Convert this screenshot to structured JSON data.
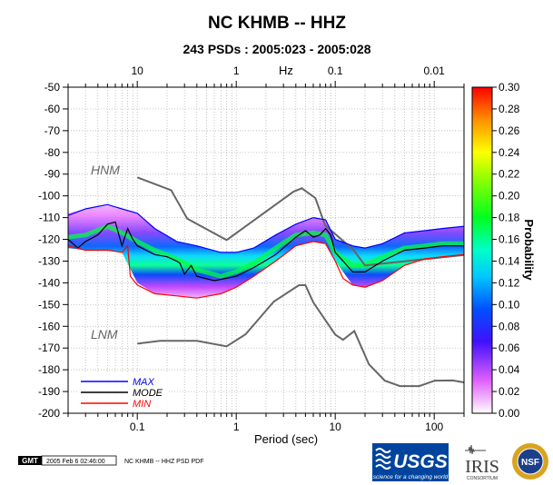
{
  "chart_data": {
    "type": "heatmap",
    "title": "NC KHMB -- HHZ",
    "subtitle": "243 PSDs : 2005:023 - 2005:028",
    "xlabel": "Period (sec)",
    "x2label": "Hz",
    "colorbar_label": "Probability",
    "x_scale": "log",
    "xlim": [
      0.02,
      200
    ],
    "ylim": [
      -200,
      -50
    ],
    "grid": true,
    "x_ticks": [
      {
        "value": 0.1,
        "label": "0.1"
      },
      {
        "value": 1,
        "label": "1"
      },
      {
        "value": 10,
        "label": "10"
      },
      {
        "value": 100,
        "label": "100"
      }
    ],
    "x2_ticks": [
      {
        "value": 10,
        "label": "10"
      },
      {
        "value": 1,
        "label": "1"
      },
      {
        "value": 0.1,
        "label": "0.1"
      },
      {
        "value": 0.01,
        "label": "0.01"
      }
    ],
    "y_ticks": [
      -50,
      -60,
      -70,
      -80,
      -90,
      -100,
      -110,
      -120,
      -130,
      -140,
      -150,
      -160,
      -170,
      -180,
      -190,
      -200
    ],
    "colorbar_ticks": [
      "0.00",
      "0.02",
      "0.04",
      "0.06",
      "0.08",
      "0.10",
      "0.12",
      "0.14",
      "0.16",
      "0.18",
      "0.20",
      "0.22",
      "0.24",
      "0.26",
      "0.28",
      "0.30"
    ],
    "colorbar_range": [
      0,
      0.3
    ],
    "noise_models": [
      {
        "name": "HNM",
        "color": "#666666",
        "points": [
          [
            0.1,
            -91.5
          ],
          [
            0.22,
            -97.4
          ],
          [
            0.32,
            -110.5
          ],
          [
            0.8,
            -120.3
          ],
          [
            3.8,
            -98.0
          ],
          [
            4.6,
            -96.5
          ],
          [
            6.3,
            -101.0
          ],
          [
            7.9,
            -113.5
          ],
          [
            15.4,
            -125.0
          ],
          [
            20.0,
            -132.0
          ],
          [
            354.8,
            -126.0
          ]
        ]
      },
      {
        "name": "LNM",
        "color": "#666666",
        "points": [
          [
            0.1,
            -168.0
          ],
          [
            0.17,
            -166.7
          ],
          [
            0.4,
            -166.7
          ],
          [
            0.8,
            -169.2
          ],
          [
            1.24,
            -163.7
          ],
          [
            2.4,
            -148.6
          ],
          [
            4.3,
            -141.1
          ],
          [
            5.0,
            -141.1
          ],
          [
            6.0,
            -149.0
          ],
          [
            10.0,
            -163.8
          ],
          [
            12.0,
            -166.2
          ],
          [
            15.6,
            -162.2
          ],
          [
            21.9,
            -177.5
          ],
          [
            31.6,
            -185.0
          ],
          [
            45.0,
            -187.5
          ],
          [
            70.8,
            -187.5
          ],
          [
            101.0,
            -185.0
          ],
          [
            154.0,
            -184.9
          ],
          [
            328.0,
            -187.5
          ]
        ]
      }
    ],
    "series": [
      {
        "name": "MAX",
        "color": "#0000ff",
        "points": [
          [
            0.02,
            -109
          ],
          [
            0.03,
            -106
          ],
          [
            0.05,
            -104
          ],
          [
            0.07,
            -106
          ],
          [
            0.1,
            -108
          ],
          [
            0.15,
            -115
          ],
          [
            0.25,
            -121
          ],
          [
            0.4,
            -123
          ],
          [
            0.7,
            -126
          ],
          [
            1.0,
            -126
          ],
          [
            1.5,
            -124
          ],
          [
            2.5,
            -118
          ],
          [
            4,
            -113
          ],
          [
            6,
            -110
          ],
          [
            8,
            -111
          ],
          [
            10,
            -120
          ],
          [
            15,
            -123
          ],
          [
            20,
            -124
          ],
          [
            30,
            -122
          ],
          [
            50,
            -117
          ],
          [
            80,
            -116
          ],
          [
            120,
            -115
          ],
          [
            200,
            -114
          ]
        ]
      },
      {
        "name": "MODE",
        "color": "#000000",
        "points": [
          [
            0.02,
            -120
          ],
          [
            0.025,
            -124
          ],
          [
            0.03,
            -121
          ],
          [
            0.04,
            -118
          ],
          [
            0.05,
            -113
          ],
          [
            0.06,
            -112
          ],
          [
            0.07,
            -123
          ],
          [
            0.08,
            -115
          ],
          [
            0.09,
            -120
          ],
          [
            0.1,
            -123
          ],
          [
            0.15,
            -127
          ],
          [
            0.2,
            -128
          ],
          [
            0.25,
            -130
          ],
          [
            0.27,
            -131
          ],
          [
            0.3,
            -136
          ],
          [
            0.35,
            -132
          ],
          [
            0.4,
            -137
          ],
          [
            0.6,
            -139
          ],
          [
            1.0,
            -137
          ],
          [
            1.5,
            -133
          ],
          [
            2.5,
            -127
          ],
          [
            4,
            -119
          ],
          [
            5,
            -116
          ],
          [
            6,
            -119
          ],
          [
            7,
            -118
          ],
          [
            8,
            -115
          ],
          [
            9,
            -118
          ],
          [
            10,
            -126
          ],
          [
            12,
            -130
          ],
          [
            15,
            -135
          ],
          [
            20,
            -135
          ],
          [
            30,
            -130
          ],
          [
            50,
            -125
          ],
          [
            80,
            -124
          ],
          [
            120,
            -123
          ],
          [
            200,
            -123
          ]
        ]
      },
      {
        "name": "MIN",
        "color": "#ff0000",
        "points": [
          [
            0.02,
            -123
          ],
          [
            0.03,
            -125
          ],
          [
            0.05,
            -125
          ],
          [
            0.07,
            -126
          ],
          [
            0.08,
            -123
          ],
          [
            0.085,
            -137
          ],
          [
            0.1,
            -141
          ],
          [
            0.15,
            -145
          ],
          [
            0.25,
            -146
          ],
          [
            0.4,
            -147
          ],
          [
            0.7,
            -145
          ],
          [
            1.0,
            -142
          ],
          [
            1.5,
            -137
          ],
          [
            2.5,
            -130
          ],
          [
            4,
            -123
          ],
          [
            6,
            -121
          ],
          [
            8,
            -122
          ],
          [
            10,
            -130
          ],
          [
            12,
            -138
          ],
          [
            15,
            -141
          ],
          [
            20,
            -142
          ],
          [
            30,
            -139
          ],
          [
            50,
            -132
          ],
          [
            80,
            -129
          ],
          [
            120,
            -128
          ],
          [
            200,
            -127
          ]
        ]
      }
    ],
    "density_band": {
      "points": [
        [
          0.02,
          -119,
          -108,
          -124
        ],
        [
          0.03,
          -118,
          -106,
          -125
        ],
        [
          0.05,
          -114,
          -104,
          -125
        ],
        [
          0.07,
          -117,
          -106,
          -126
        ],
        [
          0.1,
          -121,
          -108,
          -140
        ],
        [
          0.15,
          -125,
          -115,
          -145
        ],
        [
          0.25,
          -129,
          -121,
          -146
        ],
        [
          0.4,
          -134,
          -123,
          -147
        ],
        [
          0.7,
          -137,
          -126,
          -145
        ],
        [
          1.0,
          -135,
          -126,
          -142
        ],
        [
          1.5,
          -131,
          -124,
          -137
        ],
        [
          2.5,
          -124,
          -118,
          -130
        ],
        [
          4,
          -118,
          -113,
          -123
        ],
        [
          6,
          -117,
          -110,
          -121
        ],
        [
          8,
          -118,
          -111,
          -122
        ],
        [
          10,
          -126,
          -120,
          -130
        ],
        [
          15,
          -132,
          -123,
          -141
        ],
        [
          20,
          -132,
          -124,
          -142
        ],
        [
          30,
          -128,
          -122,
          -139
        ],
        [
          50,
          -124,
          -117,
          -132
        ],
        [
          80,
          -123,
          -116,
          -129
        ],
        [
          120,
          -122,
          -115,
          -128
        ],
        [
          200,
          -122,
          -114,
          -127
        ]
      ]
    },
    "legend": {
      "placement": "bottom-left",
      "entries": [
        "MAX",
        "MODE",
        "MIN"
      ]
    }
  },
  "footer": {
    "gmt_badge": "GMT",
    "timestamp": "2005 Feb  6 02:46:00",
    "caption": "NC KHMB -- HHZ PSD PDF"
  },
  "logos": {
    "usgs_name": "USGS",
    "usgs_tagline": "science for a changing world",
    "iris_name": "IRIS",
    "iris_caption": "CONSORTIUM",
    "nsf_name": "NSF"
  },
  "colors": {
    "hnm_lnm": "#666666",
    "max": "#0000ff",
    "mode": "#000000",
    "min": "#ff0000",
    "usgs_blue": "#00449e"
  }
}
